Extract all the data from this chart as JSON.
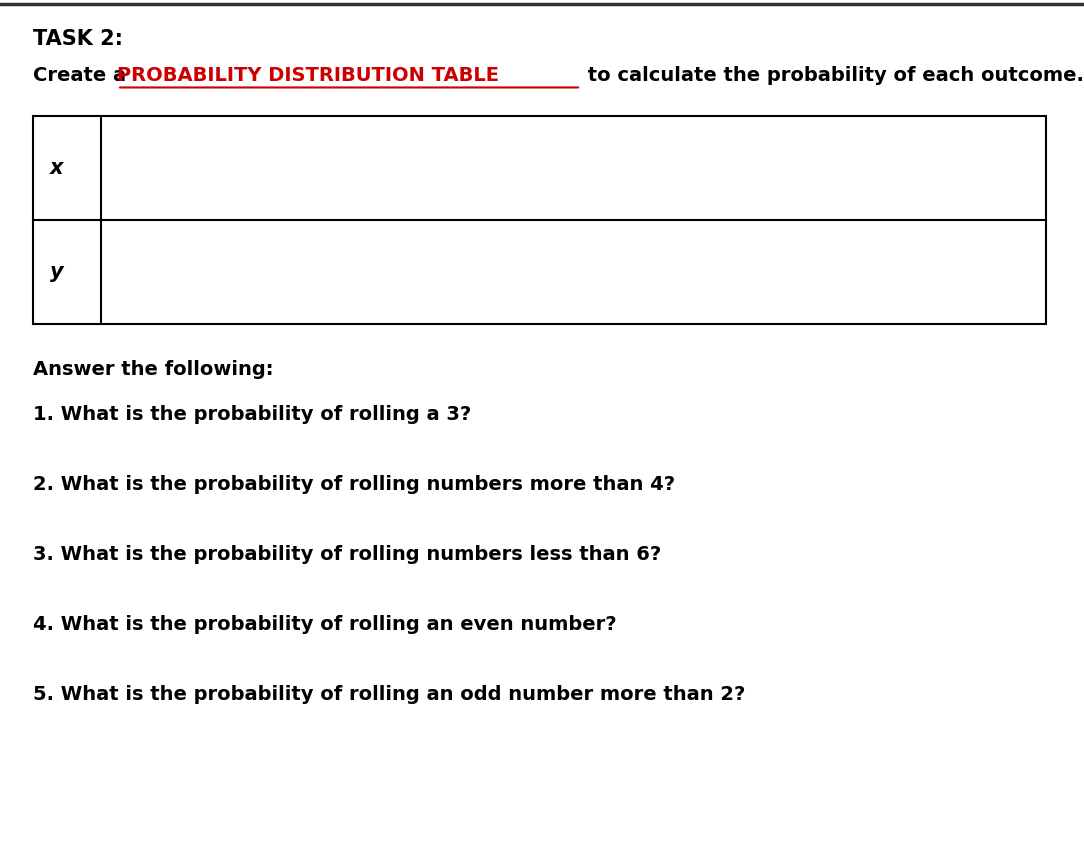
{
  "title_line1": "TASK 2:",
  "title_line2_prefix": "Create a ",
  "title_line2_highlight": "PROBABILITY DISTRIBUTION TABLE",
  "title_line2_suffix": " to calculate the probability of each outcome.",
  "table_row1_label": "x",
  "table_row2_label": "y",
  "answer_header": "Answer the following:",
  "questions": [
    "1. What is the probability of rolling a 3?",
    "2. What is the probability of rolling numbers more than 4?",
    "3. What is the probability of rolling numbers less than 6?",
    "4. What is the probability of rolling an even number?",
    "5. What is the probability of rolling an odd number more than 2?"
  ],
  "background_color": "#ffffff",
  "text_color": "#000000",
  "highlight_color": "#cc0000",
  "border_color": "#000000",
  "font_size_title": 15,
  "font_size_body": 14,
  "font_size_table_label": 15
}
